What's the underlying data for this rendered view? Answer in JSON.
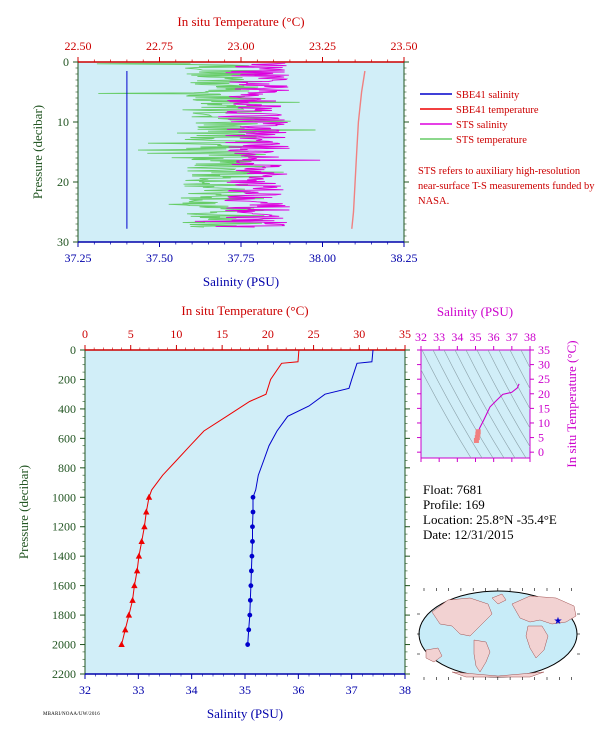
{
  "colors": {
    "plot_bg": "#d1eef8",
    "sbe_salinity": "#0000cc",
    "sbe_temperature": "#ee0000",
    "sts_salinity": "#dd00dd",
    "sts_temperature": "#66cc66",
    "temp_axis": "#cc0000",
    "sal_axis": "#0000aa",
    "pressure_axis": "#225522",
    "ts_axis": "#cc00cc"
  },
  "top_chart": {
    "top_title": "In situ Temperature (°C)",
    "bottom_title": "Salinity (PSU)",
    "y_title": "Pressure (decibar)",
    "temp_ticks": [
      "22.50",
      "22.75",
      "23.00",
      "23.25",
      "23.50"
    ],
    "sal_ticks": [
      "37.25",
      "37.50",
      "37.75",
      "38.00",
      "38.25"
    ],
    "pressure_ticks": [
      "0",
      "10",
      "20",
      "30"
    ],
    "legend": [
      {
        "label": "SBE41 salinity",
        "color": "#0000cc"
      },
      {
        "label": "SBE41 temperature",
        "color": "#ee0000"
      },
      {
        "label": "STS salinity",
        "color": "#dd00dd"
      },
      {
        "label": "STS temperature",
        "color": "#66cc66"
      }
    ],
    "note": "STS refers to auxiliary high-resolution near-surface T-S measurements funded by NASA."
  },
  "bottom_chart": {
    "top_title": "In situ Temperature (°C)",
    "bottom_title": "Salinity (PSU)",
    "y_title": "Pressure (decibar)",
    "temp_ticks": [
      "0",
      "5",
      "10",
      "15",
      "20",
      "25",
      "30",
      "35"
    ],
    "sal_ticks": [
      "32",
      "33",
      "34",
      "35",
      "36",
      "37",
      "38"
    ],
    "pressure_ticks": [
      "0",
      "200",
      "400",
      "600",
      "800",
      "1000",
      "1200",
      "1400",
      "1600",
      "1800",
      "2000",
      "2200"
    ]
  },
  "ts_chart": {
    "top_title": "Salinity (PSU)",
    "right_title": "In situ Temperature (°C)",
    "sal_ticks": [
      "32",
      "33",
      "34",
      "35",
      "36",
      "37",
      "38"
    ],
    "temp_ticks": [
      "0",
      "5",
      "10",
      "15",
      "20",
      "25",
      "30",
      "35"
    ]
  },
  "float_info": {
    "float": "Float:  7681",
    "profile": "Profile:  169",
    "location": "Location:  25.8°N  -35.4°E",
    "date": "Date:  12/31/2015"
  },
  "footer_code": "MBARI/NOAA/UW/2016",
  "chart_data": [
    {
      "type": "line",
      "title": "",
      "ylabel": "Pressure (decibar)",
      "x_top_label": "In situ Temperature (°C)",
      "x_bottom_label": "Salinity (PSU)",
      "ylim": [
        30,
        0
      ],
      "temp_lim": [
        22.5,
        23.5
      ],
      "sal_lim": [
        37.25,
        38.25
      ],
      "series": [
        {
          "name": "SBE41 salinity",
          "axis": "salinity",
          "points": [
            [
              37.4,
              1.5
            ],
            [
              37.4,
              5
            ],
            [
              37.4,
              10
            ],
            [
              37.4,
              15
            ],
            [
              37.4,
              20
            ],
            [
              37.4,
              25
            ],
            [
              37.4,
              27.8
            ]
          ]
        },
        {
          "name": "SBE41 temperature",
          "axis": "temperature",
          "points": [
            [
              23.38,
              1.5
            ],
            [
              23.37,
              5
            ],
            [
              23.36,
              10
            ],
            [
              23.355,
              15
            ],
            [
              23.35,
              20
            ],
            [
              23.345,
              25
            ],
            [
              23.34,
              27.8
            ]
          ]
        },
        {
          "name": "STS salinity",
          "axis": "salinity",
          "band": [
            37.7,
            37.9
          ],
          "depth_range": [
            0.2,
            27.5
          ]
        },
        {
          "name": "STS temperature",
          "axis": "temperature",
          "band": [
            22.82,
            23.08
          ],
          "depth_range": [
            0.2,
            27.5
          ]
        }
      ]
    },
    {
      "type": "line",
      "title": "",
      "ylabel": "Pressure (decibar)",
      "x_top_label": "In situ Temperature (°C)",
      "x_bottom_label": "Salinity (PSU)",
      "ylim": [
        2200,
        0
      ],
      "temp_lim": [
        0,
        35
      ],
      "sal_lim": [
        32,
        38
      ],
      "series": [
        {
          "name": "Temperature",
          "axis": "temperature",
          "points": [
            [
              23.4,
              0
            ],
            [
              23.3,
              80
            ],
            [
              21.5,
              90
            ],
            [
              20.3,
              200
            ],
            [
              19.8,
              300
            ],
            [
              18.0,
              350
            ],
            [
              15.5,
              450
            ],
            [
              13.0,
              550
            ],
            [
              11.5,
              650
            ],
            [
              10.0,
              750
            ],
            [
              8.5,
              850
            ],
            [
              7.3,
              950
            ],
            [
              7.0,
              1000
            ],
            [
              6.7,
              1100
            ],
            [
              6.5,
              1200
            ],
            [
              6.2,
              1300
            ],
            [
              5.9,
              1400
            ],
            [
              5.7,
              1500
            ],
            [
              5.4,
              1600
            ],
            [
              5.2,
              1700
            ],
            [
              4.8,
              1800
            ],
            [
              4.4,
              1900
            ],
            [
              4.0,
              2000
            ]
          ]
        },
        {
          "name": "Salinity",
          "axis": "salinity",
          "points": [
            [
              37.4,
              0
            ],
            [
              37.38,
              80
            ],
            [
              37.1,
              90
            ],
            [
              37.0,
              200
            ],
            [
              36.95,
              260
            ],
            [
              36.5,
              300
            ],
            [
              36.2,
              380
            ],
            [
              35.8,
              450
            ],
            [
              35.6,
              550
            ],
            [
              35.45,
              650
            ],
            [
              35.35,
              750
            ],
            [
              35.25,
              850
            ],
            [
              35.2,
              950
            ],
            [
              35.15,
              1000
            ],
            [
              35.15,
              1100
            ],
            [
              35.14,
              1200
            ],
            [
              35.14,
              1300
            ],
            [
              35.13,
              1400
            ],
            [
              35.12,
              1500
            ],
            [
              35.11,
              1600
            ],
            [
              35.1,
              1700
            ],
            [
              35.09,
              1800
            ],
            [
              35.07,
              1900
            ],
            [
              35.05,
              2000
            ]
          ]
        }
      ]
    },
    {
      "type": "scatter",
      "title": "",
      "xlabel": "Salinity (PSU)",
      "ylabel": "In situ Temperature (°C)",
      "xlim": [
        32,
        38
      ],
      "ylim": [
        -2,
        35
      ],
      "series": [
        {
          "name": "T-S profile",
          "points": [
            [
              35.05,
              4.0
            ],
            [
              35.1,
              5.0
            ],
            [
              35.13,
              6.2
            ],
            [
              35.15,
              7.0
            ],
            [
              35.25,
              8.5
            ],
            [
              35.45,
              11.0
            ],
            [
              35.8,
              15.5
            ],
            [
              36.2,
              18.0
            ],
            [
              36.5,
              19.8
            ],
            [
              37.0,
              20.5
            ],
            [
              37.3,
              22.0
            ],
            [
              37.4,
              23.4
            ]
          ]
        }
      ]
    }
  ]
}
